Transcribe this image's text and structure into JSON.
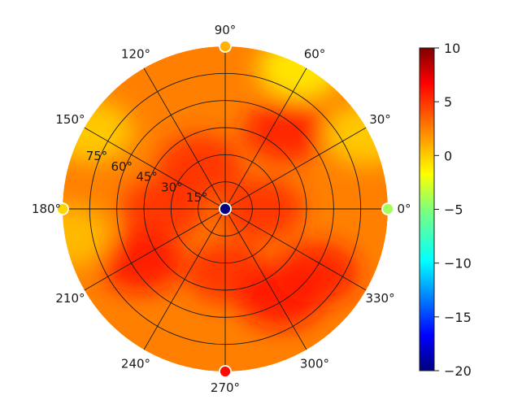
{
  "chart_data": {
    "type": "heatmap",
    "projection": "polar",
    "title": "",
    "angle_ticks": [
      "0°",
      "30°",
      "60°",
      "90°",
      "120°",
      "150°",
      "180°",
      "210°",
      "240°",
      "270°",
      "300°",
      "330°"
    ],
    "angle_values": [
      0,
      30,
      60,
      90,
      120,
      150,
      180,
      210,
      240,
      270,
      300,
      330
    ],
    "radial_ticks": [
      "15°",
      "30°",
      "45°",
      "60°",
      "75°"
    ],
    "radial_values": [
      15,
      30,
      45,
      60,
      75
    ],
    "radial_range": [
      0,
      90
    ],
    "radial_label_angle": 157.5,
    "grid": true,
    "colormap": "jet",
    "colorbar": {
      "min": -20,
      "max": 10,
      "ticks": [
        10,
        5,
        0,
        -5,
        -10,
        -15,
        -20
      ],
      "tick_labels": [
        "10",
        "5",
        "0",
        "−5",
        "−10",
        "−15",
        "−20"
      ],
      "placement": "right"
    },
    "field_approx": {
      "baseline": 2.5,
      "range_shown": [
        -20,
        6
      ],
      "hot_spots": [
        {
          "theta": 0,
          "r": 20,
          "value": 5
        },
        {
          "theta": 52,
          "r": 55,
          "value": 5.5
        },
        {
          "theta": 120,
          "r": 28,
          "value": 5
        },
        {
          "theta": 180,
          "r": 34,
          "value": 5
        },
        {
          "theta": 212,
          "r": 55,
          "value": 6
        },
        {
          "theta": 272,
          "r": 35,
          "value": 5
        },
        {
          "theta": 302,
          "r": 58,
          "value": 6
        },
        {
          "theta": 325,
          "r": 62,
          "value": 5.5
        }
      ],
      "cool_spots": [
        {
          "theta": 62,
          "r": 88,
          "value": -1
        },
        {
          "theta": 28,
          "r": 88,
          "value": 0
        },
        {
          "theta": 150,
          "r": 86,
          "value": 0
        },
        {
          "theta": 190,
          "r": 88,
          "value": 0.5
        }
      ],
      "markers": [
        {
          "theta": 0,
          "r": 0,
          "value": -20
        },
        {
          "theta": 0,
          "r": 90,
          "value": -4
        },
        {
          "theta": 90,
          "r": 90,
          "value": 1
        },
        {
          "theta": 180,
          "r": 90,
          "value": 0
        },
        {
          "theta": 270,
          "r": 90,
          "value": 6
        }
      ]
    }
  }
}
